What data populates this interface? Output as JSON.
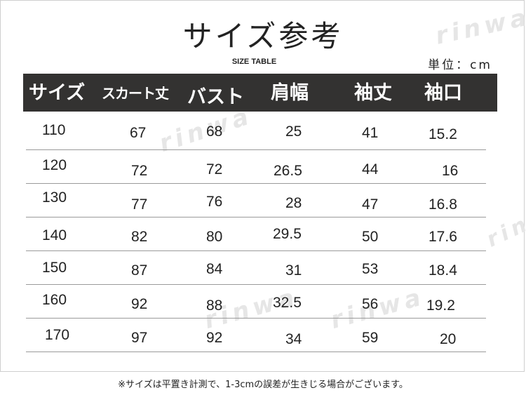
{
  "title": "サイズ参考",
  "subtitle": "SIZE TABLE",
  "unit": "単位：cm",
  "watermark": "rinwa",
  "headers": [
    "サイズ",
    "スカート丈",
    "バスト",
    "肩幅",
    "袖丈",
    "袖口"
  ],
  "rows": [
    [
      "110",
      "67",
      "68",
      "25",
      "41",
      "15.2"
    ],
    [
      "120",
      "72",
      "72",
      "26.5",
      "44",
      "16"
    ],
    [
      "130",
      "77",
      "76",
      "28",
      "47",
      "16.8"
    ],
    [
      "140",
      "82",
      "80",
      "29.5",
      "50",
      "17.6"
    ],
    [
      "150",
      "87",
      "84",
      "31",
      "53",
      "18.4"
    ],
    [
      "160",
      "92",
      "88",
      "32.5",
      "56",
      "19.2"
    ],
    [
      "170",
      "97",
      "92",
      "34",
      "59",
      "20"
    ]
  ],
  "note": "※サイズは平置き計測で、1-3cmの誤差が生きじる場合がございます。"
}
